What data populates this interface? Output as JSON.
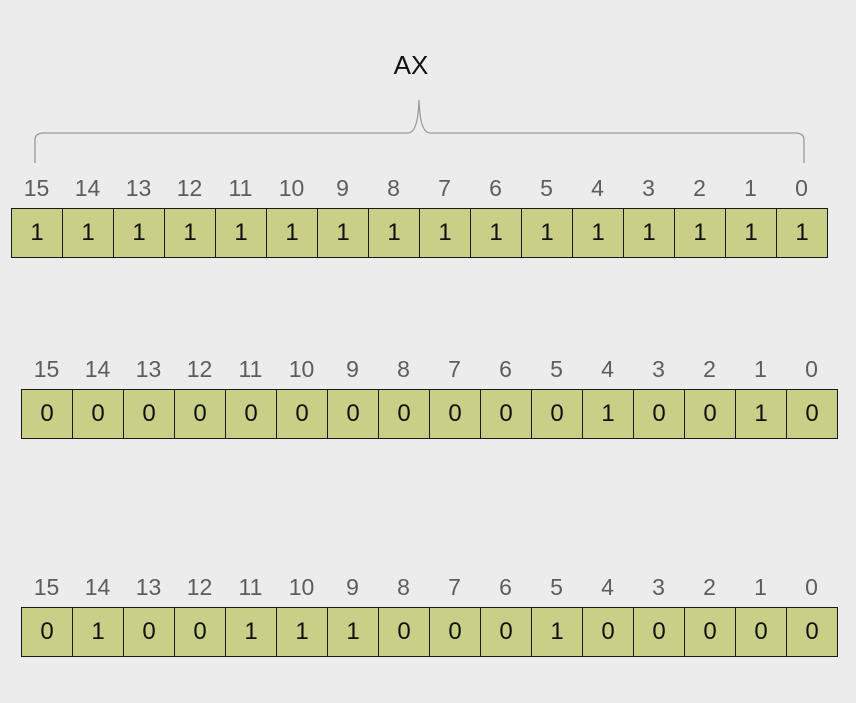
{
  "register_label": "AX",
  "bit_positions": [
    "15",
    "14",
    "13",
    "12",
    "11",
    "10",
    "9",
    "8",
    "7",
    "6",
    "5",
    "4",
    "3",
    "2",
    "1",
    "0"
  ],
  "rows": [
    {
      "bits": [
        "1",
        "1",
        "1",
        "1",
        "1",
        "1",
        "1",
        "1",
        "1",
        "1",
        "1",
        "1",
        "1",
        "1",
        "1",
        "1"
      ]
    },
    {
      "bits": [
        "0",
        "0",
        "0",
        "0",
        "0",
        "0",
        "0",
        "0",
        "0",
        "0",
        "0",
        "1",
        "0",
        "0",
        "1",
        "0"
      ]
    },
    {
      "bits": [
        "0",
        "1",
        "0",
        "0",
        "1",
        "1",
        "1",
        "0",
        "0",
        "0",
        "1",
        "0",
        "0",
        "0",
        "0",
        "0"
      ]
    }
  ]
}
